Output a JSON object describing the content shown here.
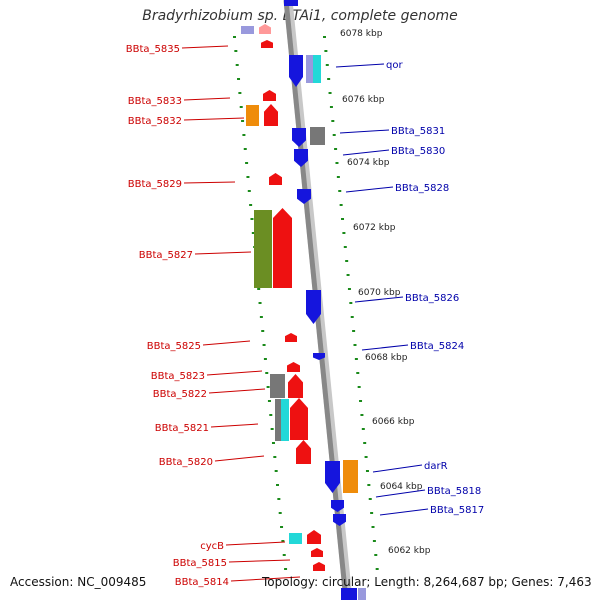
{
  "title": "Bradyrhizobium sp. BTAi1, complete genome",
  "footer": {
    "accession": "Accession: NC_009485",
    "topology": "Topology: circular; Length: 8,264,687 bp; Genes: 7,463"
  },
  "kbp_labels": [
    "6078 kbp",
    "6076 kbp",
    "6074 kbp",
    "6072 kbp",
    "6070 kbp",
    "6068 kbp",
    "6066 kbp",
    "6064 kbp",
    "6062 kbp"
  ],
  "left_genes": [
    "BBta_5835",
    "BBta_5833",
    "BBta_5832",
    "BBta_5829",
    "BBta_5827",
    "BBta_5825",
    "BBta_5823",
    "BBta_5822",
    "BBta_5821",
    "BBta_5820",
    "cycB",
    "BBta_5815",
    "BBta_5814"
  ],
  "right_genes": [
    "qor",
    "BBta_5831",
    "BBta_5830",
    "BBta_5828",
    "BBta_5826",
    "BBta_5824",
    "darR",
    "BBta_5818",
    "BBta_5817"
  ],
  "colors": {
    "forward": "#ee1111",
    "reverse": "#1515dd",
    "green": "#6b8e23",
    "orange": "#ef8c0a",
    "gray": "#777777",
    "cyan": "#22d8d8",
    "lavender": "#9999dd",
    "pink": "#ff9999",
    "backbone": "#8a8a8a",
    "tick": "#1a8a1a",
    "label_left": "#cc0000",
    "label_right": "#0000aa"
  }
}
